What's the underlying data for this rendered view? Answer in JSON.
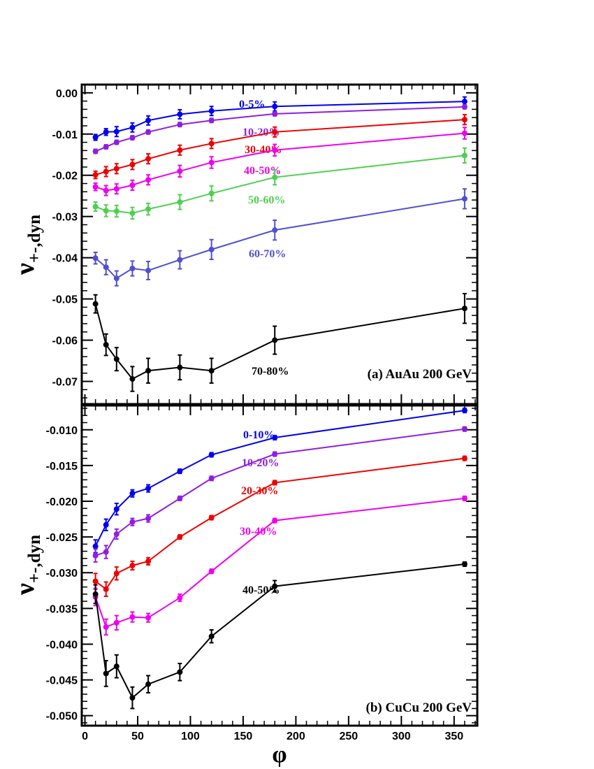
{
  "chart_data": [
    {
      "type": "line",
      "title": "(a) AuAu 200 GeV",
      "ylabel": "ν+-,dyn",
      "xlabel": "φ",
      "xlim": [
        -3,
        372
      ],
      "ylim": [
        -0.0755,
        0.002
      ],
      "yticks": [
        "0.00",
        "-0.01",
        "-0.02",
        "-0.03",
        "-0.04",
        "-0.05",
        "-0.06",
        "-0.07"
      ],
      "ytick_values": [
        0,
        -0.01,
        -0.02,
        -0.03,
        -0.04,
        -0.05,
        -0.06,
        -0.07
      ],
      "x": [
        10,
        20,
        30,
        45,
        60,
        90,
        120,
        180,
        360
      ],
      "series": [
        {
          "name": "0-5%",
          "color": "#0000ee",
          "values": [
            -0.0108,
            -0.0095,
            -0.0094,
            -0.0084,
            -0.0067,
            -0.0052,
            -0.0044,
            -0.0033,
            -0.0021
          ],
          "errors": [
            0.0007,
            0.0008,
            0.0012,
            0.0011,
            0.0011,
            0.0011,
            0.0011,
            0.0011,
            0.0011
          ]
        },
        {
          "name": "10-20%",
          "color": "#8f1fdf",
          "values": [
            -0.0142,
            -0.0131,
            -0.012,
            -0.0109,
            -0.0095,
            -0.0077,
            -0.0067,
            -0.0051,
            -0.0034
          ],
          "errors": [
            0.0005,
            0.0005,
            0.0005,
            0.0005,
            0.0005,
            0.0005,
            0.0005,
            0.0005,
            0.0005
          ]
        },
        {
          "name": "30-40%",
          "color": "#ee0000",
          "values": [
            -0.0199,
            -0.0191,
            -0.0184,
            -0.0174,
            -0.016,
            -0.0139,
            -0.0123,
            -0.0095,
            -0.0065
          ],
          "errors": [
            0.0009,
            0.0012,
            0.0012,
            0.0012,
            0.0012,
            0.0012,
            0.0012,
            0.0012,
            0.0012
          ]
        },
        {
          "name": "40-50%",
          "color": "#ee00ee",
          "values": [
            -0.0228,
            -0.0237,
            -0.0233,
            -0.0224,
            -0.0211,
            -0.019,
            -0.0169,
            -0.0139,
            -0.0098
          ],
          "errors": [
            0.0009,
            0.0012,
            0.0012,
            0.0012,
            0.0012,
            0.0014,
            0.0014,
            0.0014,
            0.0014
          ]
        },
        {
          "name": "50-60%",
          "color": "#4fcf4f",
          "values": [
            -0.0276,
            -0.0286,
            -0.0287,
            -0.0292,
            -0.0282,
            -0.0265,
            -0.0244,
            -0.0205,
            -0.0152
          ],
          "errors": [
            0.0011,
            0.0014,
            0.0014,
            0.0014,
            0.0014,
            0.0018,
            0.0018,
            0.0018,
            0.0018
          ]
        },
        {
          "name": "60-70%",
          "color": "#5050cf",
          "values": [
            -0.0401,
            -0.0423,
            -0.045,
            -0.0426,
            -0.0431,
            -0.0405,
            -0.038,
            -0.0333,
            -0.0257
          ],
          "errors": [
            0.0014,
            0.0018,
            0.0018,
            0.0018,
            0.0022,
            0.0022,
            0.0024,
            0.0024,
            0.0024
          ]
        },
        {
          "name": "70-80%",
          "color": "#000000",
          "values": [
            -0.0512,
            -0.0611,
            -0.0646,
            -0.0694,
            -0.0674,
            -0.0666,
            -0.0674,
            -0.06,
            -0.0523
          ],
          "errors": [
            0.0022,
            0.0026,
            0.0028,
            0.003,
            0.003,
            0.003,
            0.003,
            0.0034,
            0.0036
          ]
        }
      ]
    },
    {
      "type": "line",
      "title": "(b) CuCu 200 GeV",
      "ylabel": "ν+-,dyn",
      "xlabel": "φ",
      "xlim": [
        -3,
        372
      ],
      "ylim": [
        -0.0514,
        -0.0066
      ],
      "xticks": [
        "0",
        "50",
        "100",
        "150",
        "200",
        "250",
        "300",
        "350"
      ],
      "xtick_values": [
        0,
        50,
        100,
        150,
        200,
        250,
        300,
        350
      ],
      "yticks": [
        "-0.010",
        "-0.015",
        "-0.020",
        "-0.025",
        "-0.030",
        "-0.035",
        "-0.040",
        "-0.045",
        "-0.050"
      ],
      "ytick_values": [
        -0.01,
        -0.015,
        -0.02,
        -0.025,
        -0.03,
        -0.035,
        -0.04,
        -0.045,
        -0.05
      ],
      "x": [
        10,
        20,
        30,
        45,
        60,
        90,
        120,
        180,
        360
      ],
      "series": [
        {
          "name": "0-10%",
          "color": "#0000ee",
          "values": [
            -0.0263,
            -0.0233,
            -0.0211,
            -0.0189,
            -0.0182,
            -0.0158,
            -0.0135,
            -0.0111,
            -0.0073
          ],
          "errors": [
            0.0009,
            0.0008,
            0.0008,
            0.0005,
            0.0005,
            0.0003,
            0.0003,
            0.0003,
            0.0003
          ]
        },
        {
          "name": "10-20%",
          "color": "#8f1fdf",
          "values": [
            -0.0276,
            -0.0271,
            -0.0246,
            -0.0229,
            -0.0224,
            -0.0196,
            -0.0168,
            -0.0134,
            -0.0099
          ],
          "errors": [
            0.0009,
            0.0009,
            0.0007,
            0.0005,
            0.0005,
            0.0003,
            0.0003,
            0.0003,
            0.0003
          ]
        },
        {
          "name": "20-30%",
          "color": "#ee0000",
          "values": [
            -0.0312,
            -0.0323,
            -0.0301,
            -0.029,
            -0.0284,
            -0.025,
            -0.0223,
            -0.0174,
            -0.014
          ],
          "errors": [
            0.0011,
            0.001,
            0.0009,
            0.0006,
            0.0005,
            0.0003,
            0.0003,
            0.0003,
            0.0003
          ]
        },
        {
          "name": "30-40%",
          "color": "#ee00ee",
          "values": [
            -0.0334,
            -0.0376,
            -0.037,
            -0.0362,
            -0.0363,
            -0.0335,
            -0.0298,
            -0.0227,
            -0.0196
          ],
          "errors": [
            0.0012,
            0.0011,
            0.001,
            0.0007,
            0.0006,
            0.0005,
            0.0003,
            0.0003,
            0.0003
          ]
        },
        {
          "name": "40-50%",
          "color": "#000000",
          "values": [
            -0.033,
            -0.0441,
            -0.0431,
            -0.0475,
            -0.0456,
            -0.0439,
            -0.0389,
            -0.0319,
            -0.0288
          ],
          "errors": [
            0.0013,
            0.0018,
            0.0016,
            0.0015,
            0.0012,
            0.0012,
            0.0009,
            0.0008,
            0.0003
          ]
        }
      ]
    }
  ]
}
